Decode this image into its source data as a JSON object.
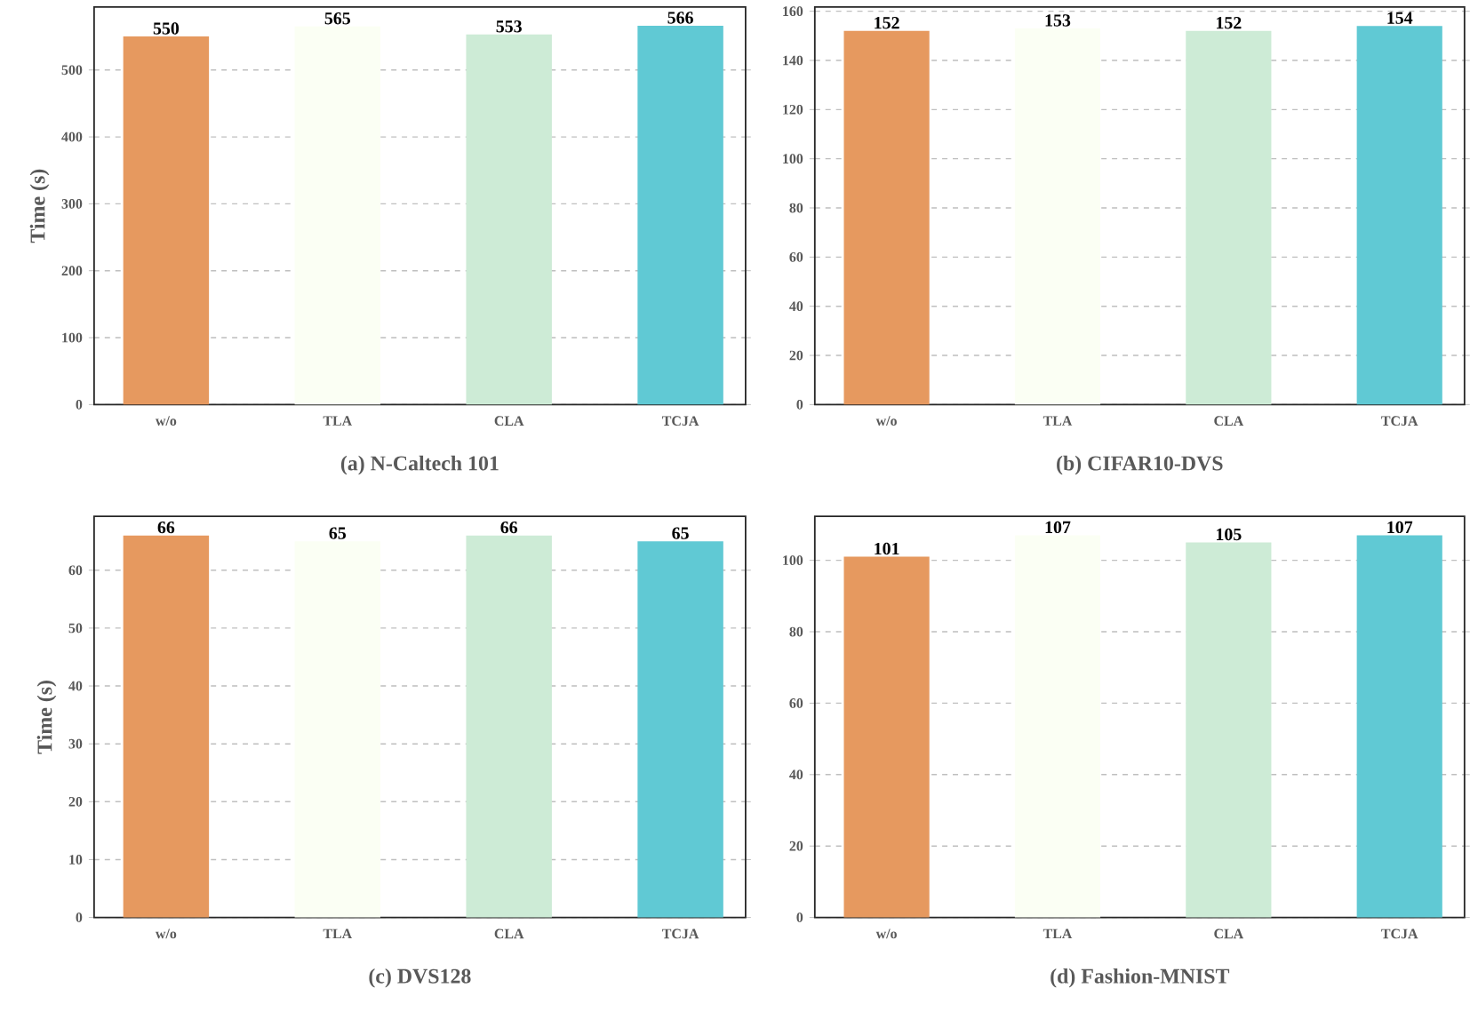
{
  "chart_data": [
    {
      "type": "bar",
      "xlabel": "(a) N-Caltech 101",
      "ylabel": "Time (s)",
      "categories": [
        "w/o",
        "TLA",
        "CLA",
        "TCJA"
      ],
      "values": [
        550,
        565,
        553,
        566
      ],
      "colors": [
        "#e6995f",
        "#fbfff4",
        "#cdebd6",
        "#60c9d4"
      ],
      "ylim": [
        0,
        594
      ],
      "yticks": [
        0,
        100,
        200,
        300,
        400,
        500
      ],
      "grid": "y",
      "data_labels": true
    },
    {
      "type": "bar",
      "xlabel": "(b) CIFAR10-DVS",
      "categories": [
        "w/o",
        "TLA",
        "CLA",
        "TCJA"
      ],
      "values": [
        152,
        153,
        152,
        154
      ],
      "colors": [
        "#e6995f",
        "#fbfff4",
        "#cdebd6",
        "#60c9d4"
      ],
      "ylim": [
        0,
        161.7
      ],
      "yticks": [
        0,
        20,
        40,
        60,
        80,
        100,
        120,
        140,
        160
      ],
      "grid": "y",
      "data_labels": true
    },
    {
      "type": "bar",
      "xlabel": "(c) DVS128",
      "ylabel": "Time (s)",
      "categories": [
        "w/o",
        "TLA",
        "CLA",
        "TCJA"
      ],
      "values": [
        66,
        65,
        66,
        65
      ],
      "colors": [
        "#e6995f",
        "#fbfff4",
        "#cdebd6",
        "#60c9d4"
      ],
      "ylim": [
        0,
        69.3
      ],
      "yticks": [
        0,
        10,
        20,
        30,
        40,
        50,
        60
      ],
      "grid": "y",
      "data_labels": true
    },
    {
      "type": "bar",
      "xlabel": "(d) Fashion-MNIST",
      "categories": [
        "w/o",
        "TLA",
        "CLA",
        "TCJA"
      ],
      "values": [
        101,
        107,
        105,
        107
      ],
      "colors": [
        "#e6995f",
        "#fbfff4",
        "#cdebd6",
        "#60c9d4"
      ],
      "ylim": [
        0,
        112.3
      ],
      "yticks": [
        0,
        20,
        40,
        60,
        80,
        100
      ],
      "grid": "y",
      "data_labels": true
    }
  ]
}
